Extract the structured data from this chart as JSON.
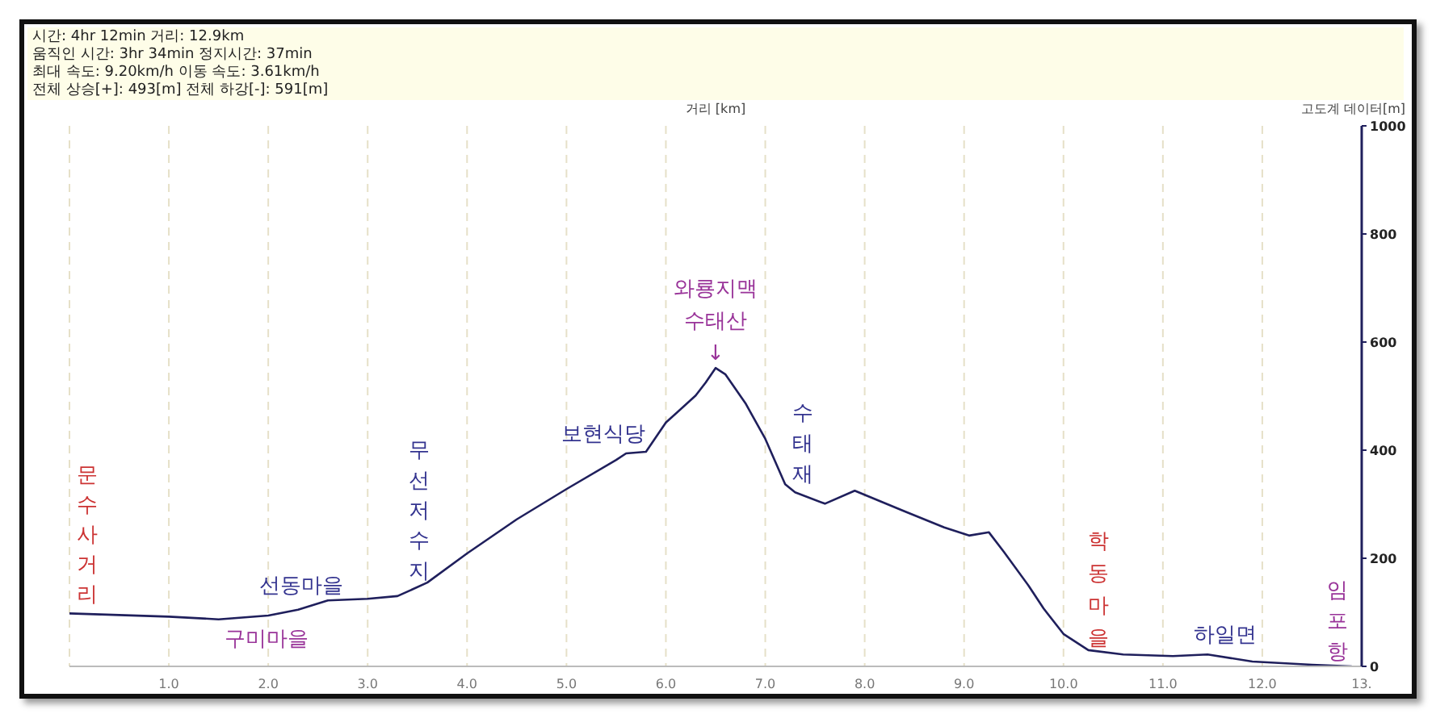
{
  "chart_data": {
    "type": "line",
    "xlabel": "거리 [km]",
    "ylabel": "고도계 데이터[m]",
    "x": [
      0,
      0.5,
      1.0,
      1.5,
      2.0,
      2.3,
      2.6,
      3.0,
      3.3,
      3.6,
      4.0,
      4.5,
      5.0,
      5.5,
      5.6,
      5.8,
      6.0,
      6.3,
      6.4,
      6.5,
      6.6,
      6.8,
      7.0,
      7.2,
      7.3,
      7.6,
      7.9,
      8.4,
      8.8,
      9.05,
      9.25,
      9.4,
      9.65,
      9.8,
      10.0,
      10.25,
      10.6,
      11.1,
      11.45,
      11.9,
      12.5,
      12.9
    ],
    "series": [
      {
        "color": "#1f1f5c",
        "values": [
          98,
          95,
          92,
          87,
          94,
          105,
          122,
          125,
          130,
          155,
          209,
          272,
          328,
          382,
          394,
          397,
          451,
          501,
          525,
          552,
          540,
          487,
          421,
          337,
          322,
          301,
          325,
          287,
          257,
          242,
          248,
          212,
          149,
          107,
          60,
          30,
          22,
          19,
          22,
          9,
          3,
          0
        ]
      }
    ],
    "xlim": [
      0,
      13
    ],
    "xticks": [
      {
        "value": 0,
        "label": null
      },
      {
        "value": 1,
        "label": "1.0"
      },
      {
        "value": 2,
        "label": "2.0"
      },
      {
        "value": 3,
        "label": "3.0"
      },
      {
        "value": 4,
        "label": "4.0"
      },
      {
        "value": 5,
        "label": "5.0"
      },
      {
        "value": 6,
        "label": "6.0"
      },
      {
        "value": 7,
        "label": "7.0"
      },
      {
        "value": 8,
        "label": "8.0"
      },
      {
        "value": 9,
        "label": "9.0"
      },
      {
        "value": 10,
        "label": "10.0"
      },
      {
        "value": 11,
        "label": "11.0"
      },
      {
        "value": 12,
        "label": "12.0"
      },
      {
        "value": 13,
        "label": "13."
      }
    ],
    "ylim": [
      0,
      1000
    ],
    "yticks": [
      0,
      200,
      400,
      600,
      800,
      1000
    ],
    "grid": "x",
    "legend": false,
    "marker": "none",
    "line_style": "solid",
    "annotations": [
      "시간: 4hr 12min  거리: 12.9km",
      "움직인 시간: 3hr 34min  정지시간: 37min",
      "최대 속도: 9.20km/h  이동 속도: 3.61km/h",
      "전체 상승[+]: 493[m]  전체 하강[-]: 591[m]",
      {
        "text": "문수사거리",
        "x": 0.1,
        "y": 97
      },
      {
        "text": "선동마을",
        "x": 2.3,
        "y": 105
      },
      {
        "text": "구미마을",
        "x": 1.9,
        "y": 92
      },
      {
        "text": "무선저수지",
        "x": 3.6,
        "y": 155
      },
      {
        "text": "보현식당",
        "x": 5.5,
        "y": 382
      },
      {
        "text": "와룡지맥\n수태산\n↓",
        "x": 6.5,
        "y": 552
      },
      {
        "text": "수태재",
        "x": 7.3,
        "y": 322
      },
      {
        "text": "학동마을",
        "x": 10.3,
        "y": 28
      },
      {
        "text": "하일면",
        "x": 11.5,
        "y": 22
      },
      {
        "text": "임포항",
        "x": 12.9,
        "y": 0
      }
    ]
  }
}
